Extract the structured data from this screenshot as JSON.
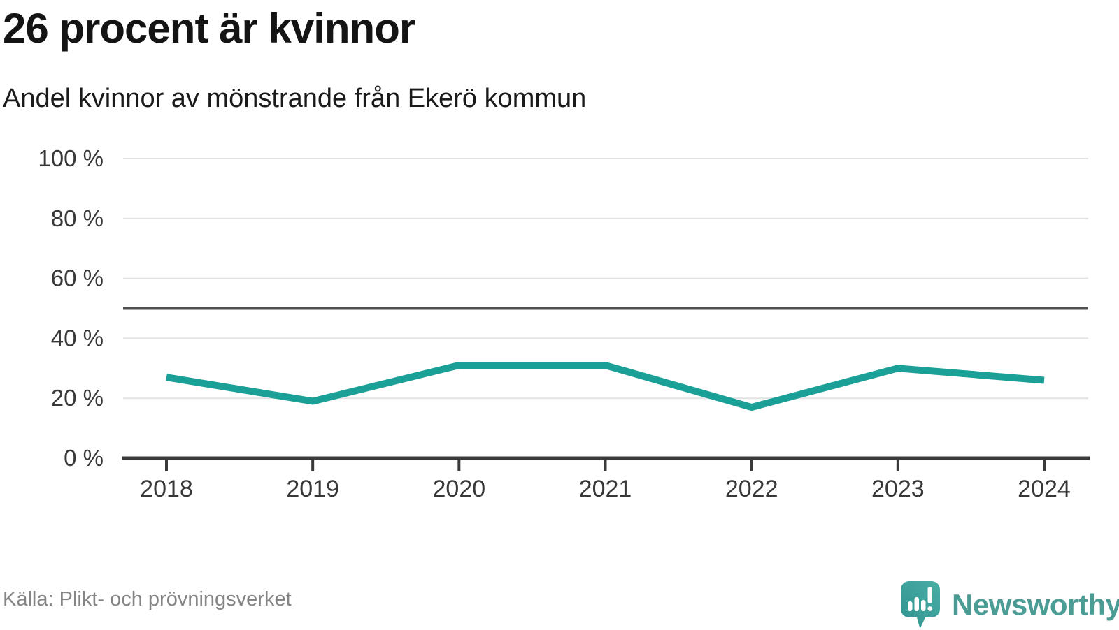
{
  "header": {
    "title": "26 procent är kvinnor",
    "subtitle": "Andel kvinnor av mönstrande från Ekerö kommun"
  },
  "footer": {
    "source": "Källa: Plikt- och prövningsverket",
    "brand": "Newsworthy"
  },
  "colors": {
    "line": "#1AA096",
    "grid": "#E2E2E2",
    "axis": "#3A3A3A",
    "reference_line": "#4F4F4F",
    "tick_label": "#383838",
    "title": "#141414",
    "source_text": "#858585",
    "brand_teal": "#4A9C95",
    "logo_gradient_top": "#49ADA5",
    "logo_gradient_bottom": "#2E948E"
  },
  "chart_data": {
    "type": "line",
    "title": "26 procent är kvinnor",
    "subtitle": "Andel kvinnor av mönstrande från Ekerö kommun",
    "x": [
      2018,
      2019,
      2020,
      2021,
      2022,
      2023,
      2024
    ],
    "series": [
      {
        "name": "Andel kvinnor av mönstrande",
        "values": [
          27,
          19,
          31,
          31,
          17,
          30,
          26
        ]
      }
    ],
    "unit": "%",
    "ylim": [
      0,
      100
    ],
    "yticks": [
      0,
      20,
      40,
      60,
      80,
      100
    ],
    "ytick_format": "{v} %",
    "reference_line": {
      "value": 50
    },
    "grid": true,
    "legend": "none"
  }
}
